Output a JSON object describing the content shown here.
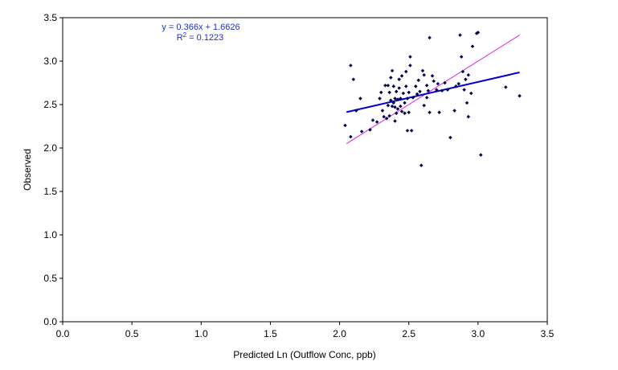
{
  "chart_data": {
    "type": "scatter",
    "xlabel": "Predicted Ln (Outflow Conc, ppb)",
    "ylabel": "Observed",
    "xlim": [
      0.0,
      3.5
    ],
    "ylim": [
      0.0,
      3.5
    ],
    "x_ticks": [
      "0.0",
      "0.5",
      "1.0",
      "1.5",
      "2.0",
      "2.5",
      "3.0",
      "3.5"
    ],
    "y_ticks": [
      "0.0",
      "0.5",
      "1.0",
      "1.5",
      "2.0",
      "2.5",
      "3.0",
      "3.5"
    ],
    "grid": false,
    "legend": "none",
    "colors": {
      "points": "#000050",
      "trendline": "#0000cc",
      "one_to_one": "#e020e0",
      "equation": "#1f2fd0"
    },
    "equation": "y = 0.366x + 1.6626",
    "r2_prefix": "R",
    "r2_sup": "2",
    "r2_value": " = 0.1223",
    "trendline": {
      "slope": 0.366,
      "intercept": 1.6626,
      "x_range": [
        2.05,
        3.3
      ]
    },
    "one_to_one_line": {
      "x_range": [
        2.05,
        3.3
      ]
    },
    "points": [
      [
        2.04,
        2.26
      ],
      [
        2.08,
        2.13
      ],
      [
        2.08,
        2.95
      ],
      [
        2.1,
        2.79
      ],
      [
        2.12,
        2.43
      ],
      [
        2.15,
        2.57
      ],
      [
        2.16,
        2.19
      ],
      [
        2.22,
        2.21
      ],
      [
        2.24,
        2.32
      ],
      [
        2.27,
        2.3
      ],
      [
        2.29,
        2.57
      ],
      [
        2.3,
        2.64
      ],
      [
        2.31,
        2.43
      ],
      [
        2.32,
        2.36
      ],
      [
        2.33,
        2.72
      ],
      [
        2.34,
        2.34
      ],
      [
        2.35,
        2.49
      ],
      [
        2.35,
        2.72
      ],
      [
        2.36,
        2.64
      ],
      [
        2.36,
        2.37
      ],
      [
        2.37,
        2.55
      ],
      [
        2.37,
        2.81
      ],
      [
        2.38,
        2.48
      ],
      [
        2.38,
        2.89
      ],
      [
        2.39,
        2.71
      ],
      [
        2.39,
        2.52
      ],
      [
        2.4,
        2.57
      ],
      [
        2.4,
        2.47
      ],
      [
        2.4,
        2.31
      ],
      [
        2.41,
        2.4
      ],
      [
        2.41,
        2.65
      ],
      [
        2.42,
        2.56
      ],
      [
        2.42,
        2.45
      ],
      [
        2.43,
        2.79
      ],
      [
        2.43,
        2.69
      ],
      [
        2.44,
        2.57
      ],
      [
        2.44,
        2.48
      ],
      [
        2.45,
        2.42
      ],
      [
        2.45,
        2.83
      ],
      [
        2.46,
        2.63
      ],
      [
        2.47,
        2.52
      ],
      [
        2.47,
        2.4
      ],
      [
        2.48,
        2.71
      ],
      [
        2.48,
        2.88
      ],
      [
        2.49,
        2.57
      ],
      [
        2.49,
        2.2
      ],
      [
        2.5,
        2.64
      ],
      [
        2.5,
        2.41
      ],
      [
        2.51,
        2.95
      ],
      [
        2.51,
        3.05
      ],
      [
        2.52,
        2.2
      ],
      [
        2.53,
        2.58
      ],
      [
        2.55,
        2.71
      ],
      [
        2.56,
        2.62
      ],
      [
        2.57,
        2.78
      ],
      [
        2.58,
        2.65
      ],
      [
        2.59,
        1.8
      ],
      [
        2.6,
        2.89
      ],
      [
        2.61,
        2.84
      ],
      [
        2.61,
        2.49
      ],
      [
        2.63,
        2.72
      ],
      [
        2.63,
        2.58
      ],
      [
        2.64,
        2.66
      ],
      [
        2.65,
        2.41
      ],
      [
        2.65,
        3.27
      ],
      [
        2.67,
        2.83
      ],
      [
        2.68,
        2.77
      ],
      [
        2.7,
        2.67
      ],
      [
        2.71,
        2.74
      ],
      [
        2.72,
        2.41
      ],
      [
        2.74,
        2.66
      ],
      [
        2.76,
        2.75
      ],
      [
        2.78,
        2.67
      ],
      [
        2.8,
        2.12
      ],
      [
        2.83,
        2.43
      ],
      [
        2.84,
        2.71
      ],
      [
        2.86,
        2.74
      ],
      [
        2.87,
        3.3
      ],
      [
        2.88,
        3.05
      ],
      [
        2.89,
        2.88
      ],
      [
        2.9,
        2.67
      ],
      [
        2.91,
        2.79
      ],
      [
        2.92,
        2.52
      ],
      [
        2.93,
        2.36
      ],
      [
        2.93,
        2.84
      ],
      [
        2.95,
        2.63
      ],
      [
        2.96,
        3.17
      ],
      [
        2.99,
        3.32
      ],
      [
        3.0,
        3.33
      ],
      [
        3.02,
        1.92
      ],
      [
        3.2,
        2.7
      ],
      [
        3.3,
        2.6
      ]
    ]
  }
}
